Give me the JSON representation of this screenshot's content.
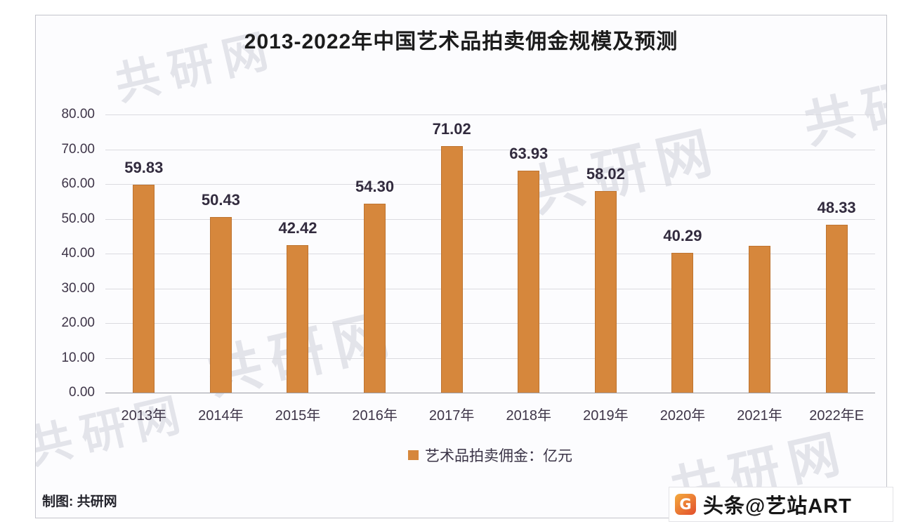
{
  "chart_data": {
    "type": "bar",
    "title": "2013-2022年中国艺术品拍卖佣金规模及预测",
    "categories": [
      "2013年",
      "2014年",
      "2015年",
      "2016年",
      "2017年",
      "2018年",
      "2019年",
      "2020年",
      "2021年",
      "2022年E"
    ],
    "values": [
      59.83,
      50.43,
      42.42,
      54.3,
      71.02,
      63.93,
      58.02,
      40.29,
      42.2,
      48.33
    ],
    "labels": [
      "59.83",
      "50.43",
      "42.42",
      "54.30",
      "71.02",
      "63.93",
      "58.02",
      "40.29",
      "",
      "48.33"
    ],
    "legend": [
      "艺术品拍卖佣金：亿元"
    ],
    "legend_position": "bottom",
    "xlabel": "",
    "ylabel": "",
    "ylim": [
      0,
      80
    ],
    "ytick_step": 10,
    "yticks": [
      "80.00",
      "70.00",
      "60.00",
      "50.00",
      "40.00",
      "30.00",
      "20.00",
      "10.00",
      "0.00"
    ],
    "grid": true,
    "bar_color": "#D6873C",
    "note": "2021年 bar shows no printed data label; its value (~42.2) is estimated from gridlines"
  },
  "footer": {
    "credit": "制图: 共研网",
    "watermark_handle": "头条@艺站ART",
    "logo_letter": "G"
  },
  "watermark": {
    "text": "共研网"
  },
  "colors": {
    "bar": "#D6873C",
    "bar_edge": "#BE7430",
    "grid": "#DBDBE0",
    "baseline": "#9B9CA4",
    "tick_text": "#3E3548",
    "value_text": "#322B3E",
    "title_text": "#1C1C1C"
  }
}
